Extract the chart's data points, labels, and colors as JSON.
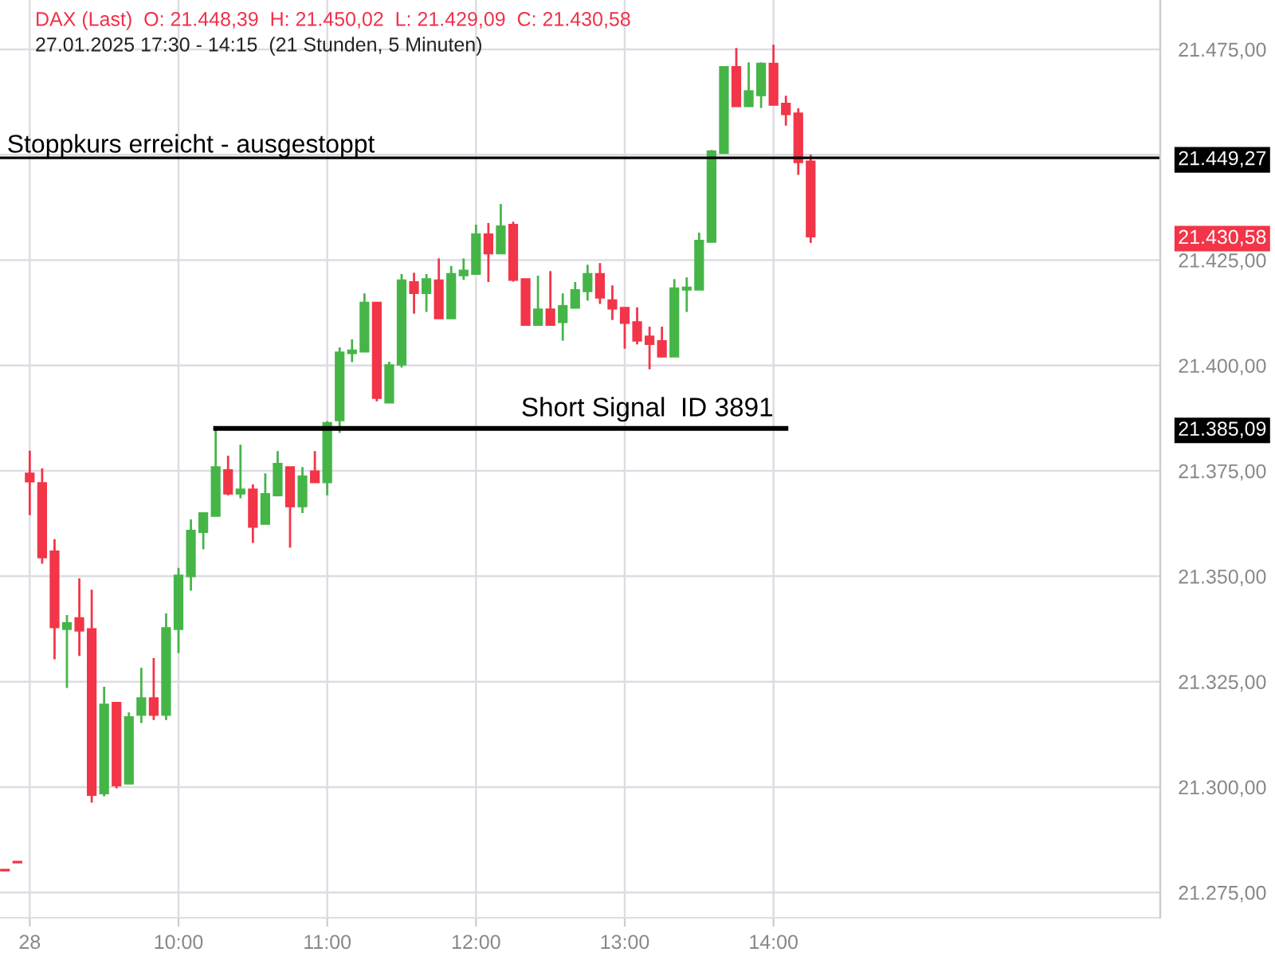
{
  "chart_data": {
    "type": "candlestick",
    "title": "DAX (Last)  O: 21.448,39  H: 21.450,02  L: 21.429,09  C: 21.430,58",
    "subtitle": "27.01.2025 17:30 - 14:15  (21 Stunden, 5 Minuten)",
    "x": [
      "2025-01-28T08:50",
      "2025-01-28T08:55",
      "2025-01-28T09:00",
      "2025-01-28T09:05",
      "2025-01-28T09:10",
      "2025-01-28T09:15",
      "2025-01-28T09:20",
      "2025-01-28T09:25",
      "2025-01-28T09:30",
      "2025-01-28T09:35",
      "2025-01-28T09:40",
      "2025-01-28T09:45",
      "2025-01-28T09:50",
      "2025-01-28T09:55",
      "2025-01-28T10:00",
      "2025-01-28T10:05",
      "2025-01-28T10:10",
      "2025-01-28T10:15",
      "2025-01-28T10:20",
      "2025-01-28T10:25",
      "2025-01-28T10:30",
      "2025-01-28T10:35",
      "2025-01-28T10:40",
      "2025-01-28T10:45",
      "2025-01-28T10:50",
      "2025-01-28T10:55",
      "2025-01-28T11:00",
      "2025-01-28T11:05",
      "2025-01-28T11:10",
      "2025-01-28T11:15",
      "2025-01-28T11:20",
      "2025-01-28T11:25",
      "2025-01-28T11:30",
      "2025-01-28T11:35",
      "2025-01-28T11:40",
      "2025-01-28T11:45",
      "2025-01-28T11:50",
      "2025-01-28T11:55",
      "2025-01-28T12:00",
      "2025-01-28T12:05",
      "2025-01-28T12:10",
      "2025-01-28T12:15",
      "2025-01-28T12:20",
      "2025-01-28T12:25",
      "2025-01-28T12:30",
      "2025-01-28T12:35",
      "2025-01-28T12:40",
      "2025-01-28T12:45",
      "2025-01-28T12:50",
      "2025-01-28T12:55",
      "2025-01-28T13:00",
      "2025-01-28T13:05",
      "2025-01-28T13:10",
      "2025-01-28T13:15",
      "2025-01-28T13:20",
      "2025-01-28T13:25",
      "2025-01-28T13:30",
      "2025-01-28T13:35",
      "2025-01-28T13:40",
      "2025-01-28T13:45",
      "2025-01-28T13:50",
      "2025-01-28T13:55",
      "2025-01-28T14:00",
      "2025-01-28T14:05",
      "2025-01-28T14:10",
      "2025-01-28T14:15"
    ],
    "ohlc": [
      [
        21280.4,
        21280.4,
        21280.2,
        21280.2
      ],
      [
        21282.3,
        21282.3,
        21282.1,
        21282.1
      ],
      [
        21374.4,
        21379.8,
        21364.5,
        21372.5
      ],
      [
        21372.1,
        21375.6,
        21353,
        21354.5
      ],
      [
        21355.9,
        21358.8,
        21330.3,
        21337.9
      ],
      [
        21337.5,
        21340.8,
        21323.5,
        21338.9
      ],
      [
        21340.1,
        21349.5,
        21331.1,
        21337.1
      ],
      [
        21337.5,
        21346.8,
        21296.3,
        21298.1
      ],
      [
        21298.5,
        21323.8,
        21297.8,
        21319.6
      ],
      [
        21320,
        21320,
        21299.7,
        21300.4
      ],
      [
        21300.8,
        21317.7,
        21300.8,
        21316.6
      ],
      [
        21317.1,
        21328.3,
        21315.2,
        21321.1
      ],
      [
        21321.1,
        21330.6,
        21315.9,
        21317.1
      ],
      [
        21317.1,
        21341.2,
        21315.9,
        21337.7
      ],
      [
        21337.5,
        21352,
        21331.8,
        21350.2
      ],
      [
        21350,
        21363.5,
        21346.6,
        21360.8
      ],
      [
        21360.5,
        21365,
        21356.4,
        21365
      ],
      [
        21364.3,
        21385,
        21364.3,
        21375.9
      ],
      [
        21375.2,
        21378.6,
        21369.2,
        21369.6
      ],
      [
        21369.6,
        21381.2,
        21368.5,
        21370.6
      ],
      [
        21370.6,
        21371.8,
        21357.9,
        21361.7
      ],
      [
        21362.4,
        21374.4,
        21362.4,
        21369.5
      ],
      [
        21369.2,
        21379.7,
        21369.2,
        21376.7
      ],
      [
        21375.9,
        21375.9,
        21356.8,
        21366.6
      ],
      [
        21366.6,
        21375.9,
        21365,
        21373.7
      ],
      [
        21374.9,
        21379.7,
        21372.3,
        21372.3
      ],
      [
        21372.3,
        21386.8,
        21369.2,
        21386.4
      ],
      [
        21387,
        21404.3,
        21384,
        21403.1
      ],
      [
        21402.9,
        21406.2,
        21400.8,
        21403.6
      ],
      [
        21403.3,
        21417.1,
        21403.3,
        21414.9
      ],
      [
        21414.9,
        21414.9,
        21391.5,
        21392.3
      ],
      [
        21391.2,
        21400.9,
        21391.2,
        21400.1
      ],
      [
        21400.2,
        21421.7,
        21399.5,
        21420.2
      ],
      [
        21419.8,
        21422,
        21412.3,
        21417.2
      ],
      [
        21417.2,
        21421.7,
        21412.7,
        21420.5
      ],
      [
        21420.2,
        21425.4,
        21411.2,
        21411.2
      ],
      [
        21411.2,
        21423.6,
        21411.2,
        21421.7
      ],
      [
        21421.4,
        21425.4,
        21420.3,
        21422.5
      ],
      [
        21421.7,
        21433.4,
        21421.7,
        21431.1
      ],
      [
        21431.1,
        21433.8,
        21419.8,
        21426.6
      ],
      [
        21426.6,
        21438.3,
        21426.6,
        21433
      ],
      [
        21433.4,
        21434.1,
        21419.9,
        21420.3
      ],
      [
        21420.5,
        21420.5,
        21409.6,
        21409.6
      ],
      [
        21409.6,
        21421.3,
        21409.6,
        21413.3
      ],
      [
        21413.3,
        21422.4,
        21409.6,
        21409.6
      ],
      [
        21410.3,
        21417.1,
        21405.9,
        21414.1
      ],
      [
        21413.7,
        21419.8,
        21413.7,
        21417.9
      ],
      [
        21417.6,
        21423.9,
        21415.4,
        21421.7
      ],
      [
        21421.7,
        21424.3,
        21414.6,
        21416.1
      ],
      [
        21415.5,
        21419,
        21410.8,
        21413.5
      ],
      [
        21413.7,
        21413.7,
        21404,
        21410.1
      ],
      [
        21410.3,
        21413.8,
        21405,
        21405.9
      ],
      [
        21406.9,
        21409.2,
        21399.1,
        21405.1
      ],
      [
        21405.8,
        21409.2,
        21402.1,
        21402.1
      ],
      [
        21402.1,
        21420.5,
        21402.1,
        21418.3
      ],
      [
        21418,
        21420.9,
        21412.7,
        21418.5
      ],
      [
        21418,
        21431.5,
        21418,
        21429.6
      ],
      [
        21429.3,
        21451.1,
        21429.3,
        21450.8
      ],
      [
        21450.4,
        21470.8,
        21450.4,
        21470.8
      ],
      [
        21470.8,
        21475.3,
        21461.5,
        21461.5
      ],
      [
        21461.5,
        21471.9,
        21461.5,
        21465.1
      ],
      [
        21464.1,
        21471.9,
        21461.1,
        21471.6
      ],
      [
        21471.6,
        21476.1,
        21461.8,
        21461.8
      ],
      [
        21462.1,
        21464,
        21456.9,
        21459.6
      ],
      [
        21459.8,
        21461,
        21445.2,
        21448.2
      ],
      [
        21448.39,
        21450.02,
        21429.09,
        21430.58
      ]
    ],
    "colors": [
      "#f23548",
      "#f23548",
      "#f23548",
      "#f23548",
      "#f23548",
      "#46b548",
      "#f23548",
      "#f23548",
      "#46b548",
      "#f23548",
      "#46b548",
      "#46b548",
      "#f23548",
      "#46b548",
      "#46b548",
      "#46b548",
      "#46b548",
      "#46b548",
      "#f23548",
      "#46b548",
      "#f23548",
      "#46b548",
      "#46b548",
      "#f23548",
      "#46b548",
      "#f23548",
      "#46b548",
      "#46b548",
      "#46b548",
      "#46b548",
      "#f23548",
      "#46b548",
      "#46b548",
      "#f23548",
      "#46b548",
      "#f23548",
      "#46b548",
      "#46b548",
      "#46b548",
      "#f23548",
      "#46b548",
      "#f23548",
      "#f23548",
      "#46b548",
      "#f23548",
      "#46b548",
      "#46b548",
      "#46b548",
      "#f23548",
      "#f23548",
      "#f23548",
      "#f23548",
      "#f23548",
      "#f23548",
      "#46b548",
      "#46b548",
      "#46b548",
      "#46b548",
      "#46b548",
      "#f23548",
      "#46b548",
      "#46b548",
      "#f23548",
      "#f23548",
      "#f23548",
      "#f23548"
    ],
    "series": [
      {
        "type": "line",
        "x": [
          "2025-01-28T10:15",
          "2025-01-28T14:05"
        ],
        "values": [
          21385.09,
          21385.09
        ],
        "color": "#000000"
      }
    ],
    "ref_lines": [
      {
        "axis": "y",
        "value": 21449.27,
        "label": "Stoppkurs erreicht - ausgestoppt",
        "color": "#000000"
      }
    ],
    "annotations": [
      {
        "text": "Short Signal  ID 3891",
        "x": "2025-01-28T14:00",
        "y": 21385.09
      }
    ],
    "y2lim": [
      21269,
      21486.7
    ],
    "y2ticks": [
      {
        "value": 21449.27,
        "label": "21.449,27"
      },
      {
        "value": 21430.58,
        "label": "21.430,58"
      },
      {
        "value": 21385.09,
        "label": "21.385,09"
      }
    ],
    "xlim": [
      "2025-01-28T08:48",
      "2025-01-28T16:36"
    ],
    "ylim": [
      21269,
      21486.7
    ],
    "xticks": [
      {
        "value": "2025-01-28T09:00",
        "label": "28"
      },
      {
        "value": "2025-01-28T10:00",
        "label": "10:00"
      },
      {
        "value": "2025-01-28T11:00",
        "label": "11:00"
      },
      {
        "value": "2025-01-28T12:00",
        "label": "12:00"
      },
      {
        "value": "2025-01-28T13:00",
        "label": "13:00"
      },
      {
        "value": "2025-01-28T14:00",
        "label": "14:00"
      }
    ],
    "yticks": [
      {
        "value": 21275,
        "label": "21.275,00"
      },
      {
        "value": 21300,
        "label": "21.300,00"
      },
      {
        "value": 21325,
        "label": "21.325,00"
      },
      {
        "value": 21350,
        "label": "21.350,00"
      },
      {
        "value": 21375,
        "label": "21.375,00"
      },
      {
        "value": 21400,
        "label": "21.400,00"
      },
      {
        "value": 21425,
        "label": "21.425,00"
      },
      {
        "value": 21450,
        "label": null
      },
      {
        "value": 21475,
        "label": "21.475,00"
      }
    ],
    "grid": true
  }
}
